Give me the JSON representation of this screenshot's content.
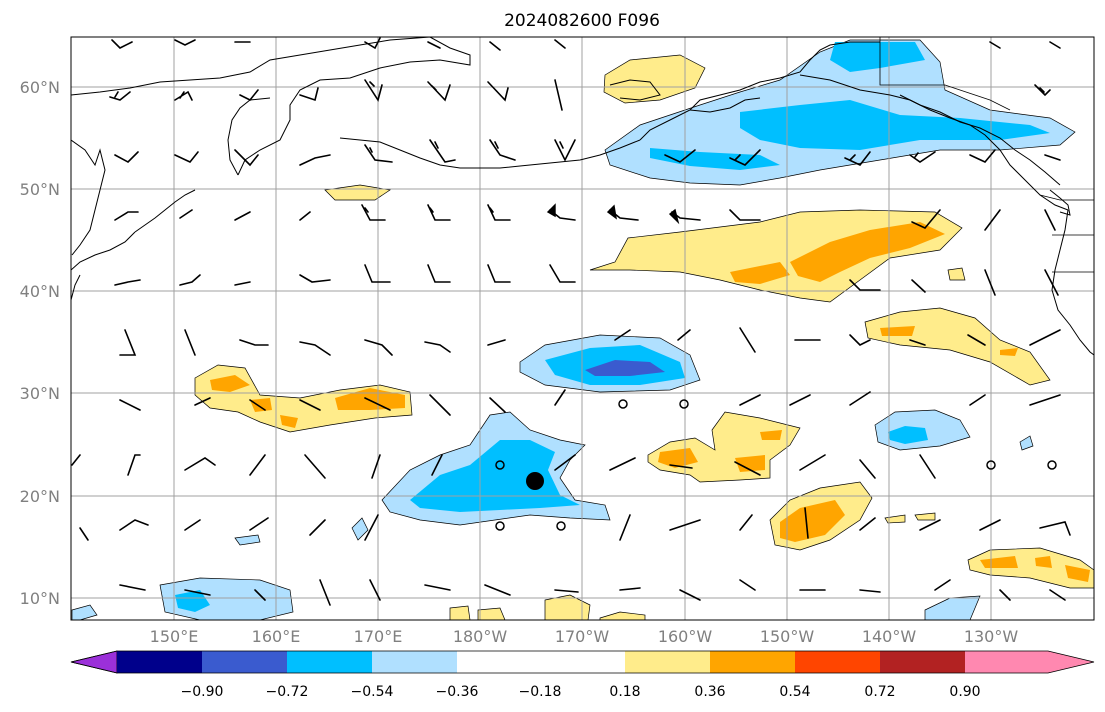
{
  "title": "2024082600 F096",
  "lat_labels": [
    "60°N",
    "50°N",
    "40°N",
    "30°N",
    "20°N",
    "10°N"
  ],
  "lon_labels": [
    "150°E",
    "160°E",
    "170°E",
    "180°W",
    "170°W",
    "160°W",
    "150°W",
    "140°W",
    "130°W"
  ],
  "colorbar": {
    "colors": [
      "#9b30d9",
      "#00008b",
      "#3a5bcf",
      "#00bfff",
      "#b0e0ff",
      "#ffffff",
      "#ffec8b",
      "#ffa500",
      "#ff4500",
      "#b22222",
      "#ff88b0"
    ],
    "labels": [
      "−0.90",
      "−0.72",
      "−0.54",
      "−0.36",
      "−0.18",
      "0.18",
      "0.36",
      "0.54",
      "0.72",
      "0.90"
    ]
  },
  "storm_marker": "tropical-cyclone-center",
  "map_extent": {
    "lon_min": 140,
    "lon_max": 240,
    "lat_min": 8,
    "lat_max": 65
  }
}
